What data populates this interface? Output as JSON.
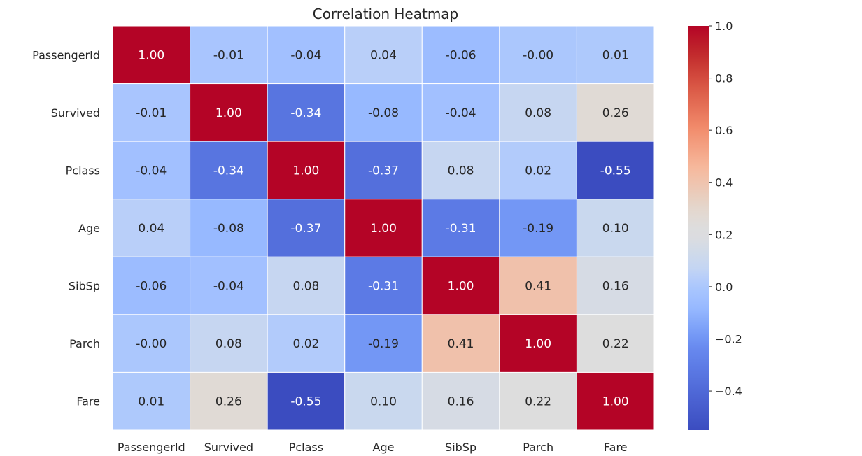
{
  "chart_data": {
    "type": "heatmap",
    "title": "Correlation Heatmap",
    "xlabel": "",
    "ylabel": "",
    "rows": [
      "PassengerId",
      "Survived",
      "Pclass",
      "Age",
      "SibSp",
      "Parch",
      "Fare"
    ],
    "columns": [
      "PassengerId",
      "Survived",
      "Pclass",
      "Age",
      "SibSp",
      "Parch",
      "Fare"
    ],
    "values": [
      [
        1.0,
        -0.01,
        -0.04,
        0.04,
        -0.06,
        -0.0,
        0.01
      ],
      [
        -0.01,
        1.0,
        -0.34,
        -0.08,
        -0.04,
        0.08,
        0.26
      ],
      [
        -0.04,
        -0.34,
        1.0,
        -0.37,
        0.08,
        0.02,
        -0.55
      ],
      [
        0.04,
        -0.08,
        -0.37,
        1.0,
        -0.31,
        -0.19,
        0.1
      ],
      [
        -0.06,
        -0.04,
        0.08,
        -0.31,
        1.0,
        0.41,
        0.16
      ],
      [
        -0.0,
        0.08,
        0.02,
        -0.19,
        0.41,
        1.0,
        0.22
      ],
      [
        0.01,
        0.26,
        -0.55,
        0.1,
        0.16,
        0.22,
        1.0
      ]
    ],
    "cell_labels": [
      [
        "1.00",
        "-0.01",
        "-0.04",
        "0.04",
        "-0.06",
        "-0.00",
        "0.01"
      ],
      [
        "-0.01",
        "1.00",
        "-0.34",
        "-0.08",
        "-0.04",
        "0.08",
        "0.26"
      ],
      [
        "-0.04",
        "-0.34",
        "1.00",
        "-0.37",
        "0.08",
        "0.02",
        "-0.55"
      ],
      [
        "0.04",
        "-0.08",
        "-0.37",
        "1.00",
        "-0.31",
        "-0.19",
        "0.10"
      ],
      [
        "-0.06",
        "-0.04",
        "0.08",
        "-0.31",
        "1.00",
        "0.41",
        "0.16"
      ],
      [
        "-0.00",
        "0.08",
        "0.02",
        "-0.19",
        "0.41",
        "1.00",
        "0.22"
      ],
      [
        "0.01",
        "0.26",
        "-0.55",
        "0.10",
        "0.16",
        "0.22",
        "1.00"
      ]
    ],
    "colormap": "coolwarm",
    "color_range": [
      -0.55,
      1.0
    ],
    "colorbar": {
      "ticks": [
        -0.4,
        -0.2,
        0.0,
        0.2,
        0.4,
        0.6,
        0.8,
        1.0
      ],
      "tick_labels": [
        "−0.4",
        "−0.2",
        "0.0",
        "0.2",
        "0.4",
        "0.6",
        "0.8",
        "1.0"
      ],
      "placement": "right"
    },
    "grid": false,
    "cell_borders": "white"
  }
}
